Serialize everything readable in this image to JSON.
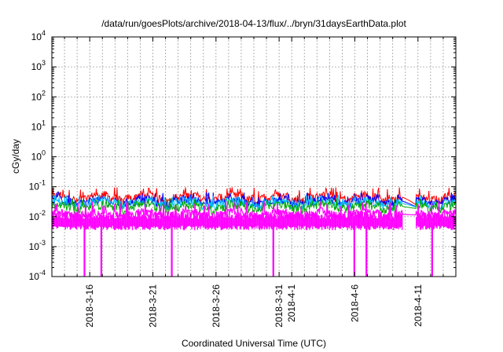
{
  "chart_data": {
    "type": "line",
    "title": "/data/run/goesPlots/archive/2018-04-13/flux/../bryn/31daysEarthData.plot",
    "xlabel": "Coordinated Universal Time (UTC)",
    "ylabel": "cGy/day",
    "yscale": "log",
    "ylim": [
      0.0001,
      10000
    ],
    "xlim": [
      "2018-03-13",
      "2018-04-14"
    ],
    "grid": true,
    "legend": "none",
    "yticks": [
      {
        "exp": "-4"
      },
      {
        "exp": "-3"
      },
      {
        "exp": "-2"
      },
      {
        "exp": "-1"
      },
      {
        "exp": "0"
      },
      {
        "exp": "1"
      },
      {
        "exp": "2"
      },
      {
        "exp": "3"
      },
      {
        "exp": "4"
      }
    ],
    "xticks": [
      {
        "date": "2018-03-16",
        "label": "2018-3-16"
      },
      {
        "date": "2018-03-21",
        "label": "2018-3-21"
      },
      {
        "date": "2018-03-26",
        "label": "2018-3-26"
      },
      {
        "date": "2018-03-31",
        "label": "2018-3-31"
      },
      {
        "date": "2018-04-01",
        "label": "2018-4-1"
      },
      {
        "date": "2018-04-06",
        "label": "2018-4-6"
      },
      {
        "date": "2018-04-11",
        "label": "2018-4-11"
      }
    ],
    "minor_grid_dates": [
      "2018-03-14",
      "2018-03-15",
      "2018-03-17",
      "2018-03-18",
      "2018-03-19",
      "2018-03-20",
      "2018-03-22",
      "2018-03-23",
      "2018-03-24",
      "2018-03-25",
      "2018-03-27",
      "2018-03-28",
      "2018-03-29",
      "2018-03-30",
      "2018-04-02",
      "2018-04-03",
      "2018-04-04",
      "2018-04-05",
      "2018-04-07",
      "2018-04-08",
      "2018-04-09",
      "2018-04-10",
      "2018-04-12",
      "2018-04-13"
    ],
    "data_gap": [
      "2018-04-09T18:00",
      "2018-04-10T20:00"
    ],
    "dropouts": [
      {
        "date": "2018-03-15T14:00",
        "y": 0.0001
      },
      {
        "date": "2018-03-16T22:00",
        "y": 0.0001
      },
      {
        "date": "2018-03-22T12:00",
        "y": 0.0001
      },
      {
        "date": "2018-03-30T13:00",
        "y": 0.0001
      },
      {
        "date": "2018-04-05T23:00",
        "y": 0.0001
      },
      {
        "date": "2018-04-06T22:00",
        "y": 0.0001
      },
      {
        "date": "2018-04-12T03:00",
        "y": 0.0001
      }
    ],
    "series": [
      {
        "color": "#ff0000",
        "level": 0.045,
        "peak": 0.08
      },
      {
        "color": "#0000ff",
        "level": 0.033,
        "peak": 0.055
      },
      {
        "color": "#00c0ff",
        "level": 0.028,
        "peak": 0.045
      },
      {
        "color": "#00aa00",
        "level": 0.022,
        "peak": 0.035
      },
      {
        "color": "#ff00ff",
        "level": 0.012,
        "peak": 0.028
      }
    ]
  }
}
